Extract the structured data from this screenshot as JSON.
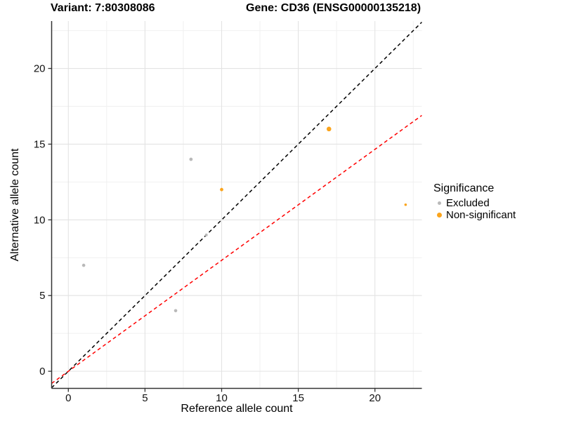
{
  "titles": {
    "variant": "Variant: 7:80308086",
    "gene": "Gene: CD36 (ENSG00000135218)"
  },
  "colors": {
    "axis_line": "#333333",
    "grid_major": "#e3e3e3",
    "grid_minor": "#f0f0f0",
    "tick_text": "#111111",
    "excluded_point": "#b9b9b9",
    "non_significant_point": "#fba41c",
    "identity_line": "#000000",
    "expected_ratio_line": "#ff0000"
  },
  "chart_data": {
    "type": "scatter",
    "title_left": "Variant: 7:80308086",
    "title_right": "Gene: CD36 (ENSG00000135218)",
    "xlabel": "Reference allele count",
    "ylabel": "Alternative allele count",
    "xlim": [
      -1.09,
      23.06
    ],
    "ylim": [
      -1.13,
      23.13
    ],
    "x_ticks": [
      0,
      5,
      10,
      15,
      20
    ],
    "y_ticks": [
      0,
      5,
      10,
      15,
      20
    ],
    "minor_ticks": [
      2.5,
      7.5,
      12.5,
      17.5,
      22.5
    ],
    "grid": "major and minor, light gray on white",
    "series": [
      {
        "name": "Excluded",
        "color": "#b9b9b9",
        "points": [
          {
            "x": 1,
            "y": 7,
            "r": 2.3
          },
          {
            "x": 7,
            "y": 4,
            "r": 2.3
          },
          {
            "x": 8,
            "y": 14,
            "r": 2.4
          },
          {
            "x": 9,
            "y": 9,
            "r": 2.0
          }
        ]
      },
      {
        "name": "Non-significant",
        "color": "#fba41c",
        "points": [
          {
            "x": 10,
            "y": 12,
            "r": 2.4
          },
          {
            "x": 17,
            "y": 16,
            "r": 3.3
          },
          {
            "x": 22,
            "y": 11,
            "r": 1.8
          }
        ]
      }
    ],
    "lines": [
      {
        "name": "identity",
        "color": "#000000",
        "dash": "5,4",
        "x1": -1.09,
        "y1": -1.09,
        "x2": 23.06,
        "y2": 23.06
      },
      {
        "name": "expected-ratio",
        "color": "#ff0000",
        "dash": "5,4",
        "x1": -1.09,
        "y1": -0.8,
        "x2": 23.06,
        "y2": 16.9
      }
    ],
    "legend": {
      "title": "Significance",
      "position": "right",
      "items": [
        {
          "label": "Excluded",
          "color": "#b9b9b9",
          "size": 5.5
        },
        {
          "label": "Non-significant",
          "color": "#fba41c",
          "size": 7
        }
      ]
    }
  }
}
